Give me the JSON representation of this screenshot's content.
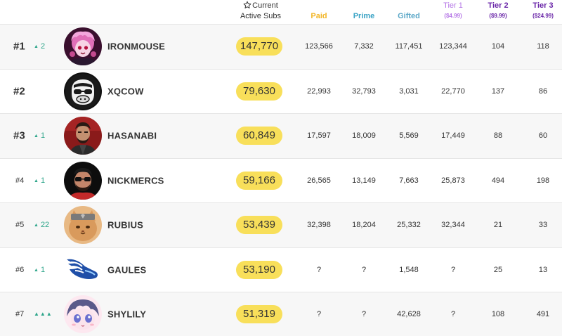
{
  "header": {
    "current_label_line1": "Current",
    "current_label_line2": "Active Subs",
    "star_icon": "star-outline-icon",
    "paid": "Paid",
    "prime": "Prime",
    "gifted": "Gifted",
    "tier1": "Tier 1",
    "tier1_price": "($4.99)",
    "tier2": "Tier 2",
    "tier2_price": "($9.99)",
    "tier3": "Tier 3",
    "tier3_price": "($24.99)"
  },
  "colors": {
    "pill": "#f8df5a",
    "change_up": "#2da58a",
    "paid": "#f2b629",
    "prime": "#3aa3c5",
    "tier": "#6a26a8"
  },
  "rows": [
    {
      "rank": "#1",
      "change": "2",
      "name": "IRONMOUSE",
      "current": "147,770",
      "paid": "123,566",
      "prime": "7,332",
      "gifted": "117,451",
      "tier1": "123,344",
      "tier2": "104",
      "tier3": "118",
      "avatar": "ironmouse-avatar"
    },
    {
      "rank": "#2",
      "change": "",
      "name": "XQCOW",
      "current": "79,630",
      "paid": "22,993",
      "prime": "32,793",
      "gifted": "3,031",
      "tier1": "22,770",
      "tier2": "137",
      "tier3": "86",
      "avatar": "xqcow-avatar"
    },
    {
      "rank": "#3",
      "change": "1",
      "name": "HASANABI",
      "current": "60,849",
      "paid": "17,597",
      "prime": "18,009",
      "gifted": "5,569",
      "tier1": "17,449",
      "tier2": "88",
      "tier3": "60",
      "avatar": "hasanabi-avatar"
    },
    {
      "rank": "#4",
      "change": "1",
      "name": "NICKMERCS",
      "current": "59,166",
      "paid": "26,565",
      "prime": "13,149",
      "gifted": "7,663",
      "tier1": "25,873",
      "tier2": "494",
      "tier3": "198",
      "avatar": "nickmercs-avatar"
    },
    {
      "rank": "#5",
      "change": "22",
      "name": "RUBIUS",
      "current": "53,439",
      "paid": "32,398",
      "prime": "18,204",
      "gifted": "25,332",
      "tier1": "32,344",
      "tier2": "21",
      "tier3": "33",
      "avatar": "rubius-avatar"
    },
    {
      "rank": "#6",
      "change": "1",
      "name": "GAULES",
      "current": "53,190",
      "paid": "?",
      "prime": "?",
      "gifted": "1,548",
      "tier1": "?",
      "tier2": "25",
      "tier3": "13",
      "avatar": "gaules-avatar"
    },
    {
      "rank": "#7",
      "change": "▲▲▲",
      "name": "SHYLILY",
      "current": "51,319",
      "paid": "?",
      "prime": "?",
      "gifted": "42,628",
      "tier1": "?",
      "tier2": "108",
      "tier3": "491",
      "avatar": "shylily-avatar"
    }
  ]
}
